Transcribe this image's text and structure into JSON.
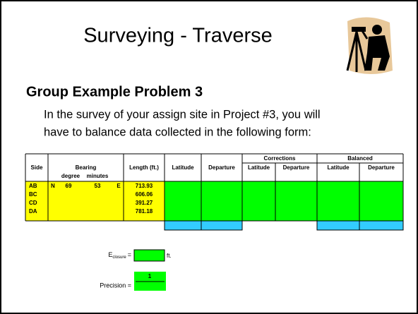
{
  "header": {
    "title": "Surveying - Traverse"
  },
  "heading": "Group Example Problem 3",
  "intro": [
    "In the survey of your assign site in Project #3, you will",
    "have to balance data collected in the following form:"
  ],
  "table": {
    "group_headers": [
      "Corrections",
      "Balanced"
    ],
    "headers": [
      "Side",
      "Bearing",
      "Length (ft.)",
      "Latitude",
      "Departure",
      "Latitude",
      "Departure",
      "Latitude",
      "Departure"
    ],
    "bearing_subheaders": [
      "degree",
      "minutes"
    ],
    "rows": [
      {
        "side": "AB",
        "bearing": [
          "N",
          69,
          53,
          "E"
        ],
        "length": 713.93
      },
      {
        "side": "BC",
        "length": 606.06
      },
      {
        "side": "CD",
        "length": 391.27
      },
      {
        "side": "DA",
        "length": 781.18
      }
    ]
  },
  "closure": {
    "label": "E",
    "subscript": "closure",
    "equals": "=",
    "unit": "ft."
  },
  "precision": {
    "label": "Precision =",
    "value": 1
  }
}
